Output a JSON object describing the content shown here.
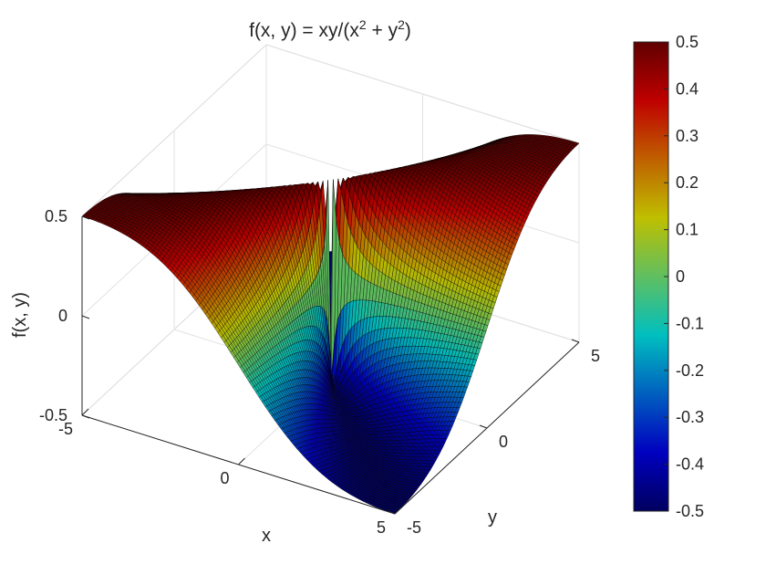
{
  "chart_data": {
    "type": "surface",
    "function": "xy/(x^2 + y^2)",
    "title": "f(x, y) = xy/(x^2 + y^2)",
    "title_parts": {
      "pre": "f(x, y) = xy/(x",
      "exp1": "2",
      "mid": " + y",
      "exp2": "2",
      "post": ")"
    },
    "xlabel": "x",
    "ylabel": "y",
    "zlabel": "f(x, y)",
    "xlim": [
      -5,
      5
    ],
    "ylim": [
      -5,
      5
    ],
    "zlim": [
      -0.5,
      0.5
    ],
    "x_ticks": [
      "-5",
      "0",
      "5"
    ],
    "y_ticks": [
      "-5",
      "0",
      "5"
    ],
    "z_ticks": [
      "-0.5",
      "0",
      "0.5"
    ],
    "grid_points_per_axis": 100,
    "grid": true,
    "colormap": "jet",
    "colorbar": {
      "range": [
        -0.5,
        0.5
      ],
      "ticks": [
        "0.5",
        "0.4",
        "0.3",
        "0.2",
        "0.1",
        "0",
        "-0.1",
        "-0.2",
        "-0.3",
        "-0.4",
        "-0.5"
      ],
      "placement": "right"
    },
    "edge_color": "#000000"
  }
}
